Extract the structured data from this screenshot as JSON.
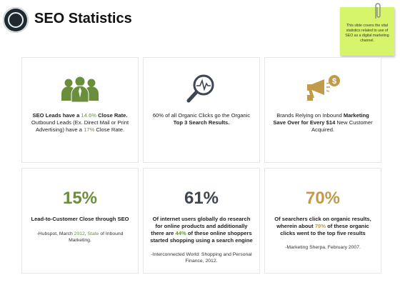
{
  "header": {
    "title": "SEO Statistics"
  },
  "sticky_note": {
    "text": "This slide covers the vital statistics related to use of SEO as a digital marketing channel."
  },
  "colors": {
    "green": "#6b8e3d",
    "slate": "#3d4651",
    "gold": "#c19a4c",
    "sticky": "#d6f56a"
  },
  "cards_top": [
    {
      "icon": "people-group-icon",
      "p1": "SEO Leads have a ",
      "h1": "14.6%",
      "p2": " Close Rate.",
      "p3": " Outbound Leads (Ex. Direct Mail or Print Advertising) have a ",
      "h2": "17%",
      "p4": " Close Rate."
    },
    {
      "icon": "magnifier-pulse-icon",
      "p1": "60%  of all Organic Clicks go the Organic ",
      "b1": "Top 3 Search Results."
    },
    {
      "icon": "megaphone-money-icon",
      "p1": "Brands Relying on Inbound ",
      "b1": "Marketing Save Over for Every $14",
      "p2": " New Customer Acquired."
    }
  ],
  "cards_bottom": [
    {
      "value": "15%",
      "headline": "Lead-to-Customer Close through SEO",
      "src_a": "-Hubspot, March ",
      "src_h": "2012",
      "src_b": ", ",
      "src_h2": "State",
      "src_c": " of Inbound Marketing."
    },
    {
      "value": "61%",
      "headline_a": "Of internet users globally do research for online products and additionally there are ",
      "headline_h": "44%",
      "headline_b": " of these online shoppers started shopping using a search engine",
      "src": "-Interconnected World: Shopping and Personal Finance, 2012."
    },
    {
      "value": "70%",
      "headline_a": "Of searchers click on organic results, wherein about ",
      "headline_h": "79%",
      "headline_b": " of these organic clicks went to the top five results",
      "src": "-Marketing Sherpa, February 2007."
    }
  ]
}
